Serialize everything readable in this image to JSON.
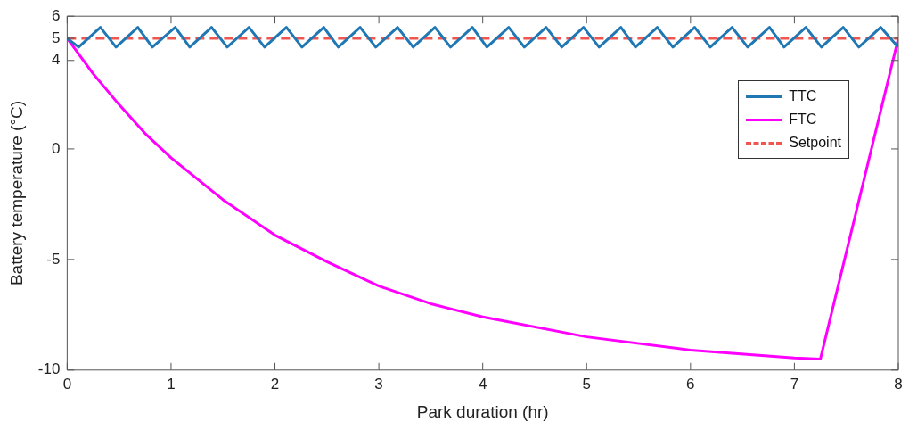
{
  "chart_data": {
    "type": "line",
    "xlabel": "Park duration (hr)",
    "ylabel": "Battery temperature (°C)",
    "xlim": [
      0,
      8
    ],
    "xticks": [
      0,
      1,
      2,
      3,
      4,
      5,
      6,
      7,
      8
    ],
    "ylim": [
      -10,
      6
    ],
    "yticks": [
      -10,
      -5,
      0,
      4,
      5,
      6
    ],
    "grid": false,
    "legend": "top right",
    "marker": "none",
    "line_style": "solid",
    "series": [
      {
        "name": "TTC",
        "color": "#1f77b4",
        "x": [
          0,
          0.11,
          0.32,
          0.47,
          0.68,
          0.82,
          1.04,
          1.18,
          1.39,
          1.54,
          1.75,
          1.9,
          2.11,
          2.26,
          2.47,
          2.61,
          2.82,
          2.97,
          3.18,
          3.33,
          3.54,
          3.69,
          3.9,
          4.04,
          4.25,
          4.4,
          4.61,
          4.76,
          4.97,
          5.12,
          5.33,
          5.47,
          5.68,
          5.83,
          6.04,
          6.19,
          6.4,
          6.55,
          6.76,
          6.9,
          7.11,
          7.26,
          7.47,
          7.62,
          7.83,
          8.0
        ],
        "values": [
          5,
          4.6,
          5.5,
          4.6,
          5.5,
          4.6,
          5.5,
          4.6,
          5.5,
          4.6,
          5.5,
          4.6,
          5.5,
          4.6,
          5.5,
          4.6,
          5.5,
          4.6,
          5.5,
          4.6,
          5.5,
          4.6,
          5.5,
          4.6,
          5.5,
          4.6,
          5.5,
          4.6,
          5.5,
          4.6,
          5.5,
          4.6,
          5.5,
          4.6,
          5.5,
          4.6,
          5.5,
          4.6,
          5.5,
          4.6,
          5.5,
          4.6,
          5.5,
          4.6,
          5.5,
          4.6
        ]
      },
      {
        "name": "FTC",
        "color": "#ff00ff",
        "x": [
          0,
          0.25,
          0.5,
          0.75,
          1,
          1.5,
          2,
          2.5,
          3,
          3.5,
          4,
          5,
          6,
          7,
          7.25,
          8
        ],
        "values": [
          5,
          3.4,
          2.0,
          0.7,
          -0.4,
          -2.3,
          -3.9,
          -5.1,
          -6.2,
          -7.0,
          -7.6,
          -8.5,
          -9.1,
          -9.45,
          -9.5,
          5
        ]
      }
    ],
    "ref_lines": [
      {
        "axis": "y",
        "value": 5,
        "label": "Setpoint",
        "color": "#f0554f",
        "line_style": "dashed"
      }
    ]
  }
}
